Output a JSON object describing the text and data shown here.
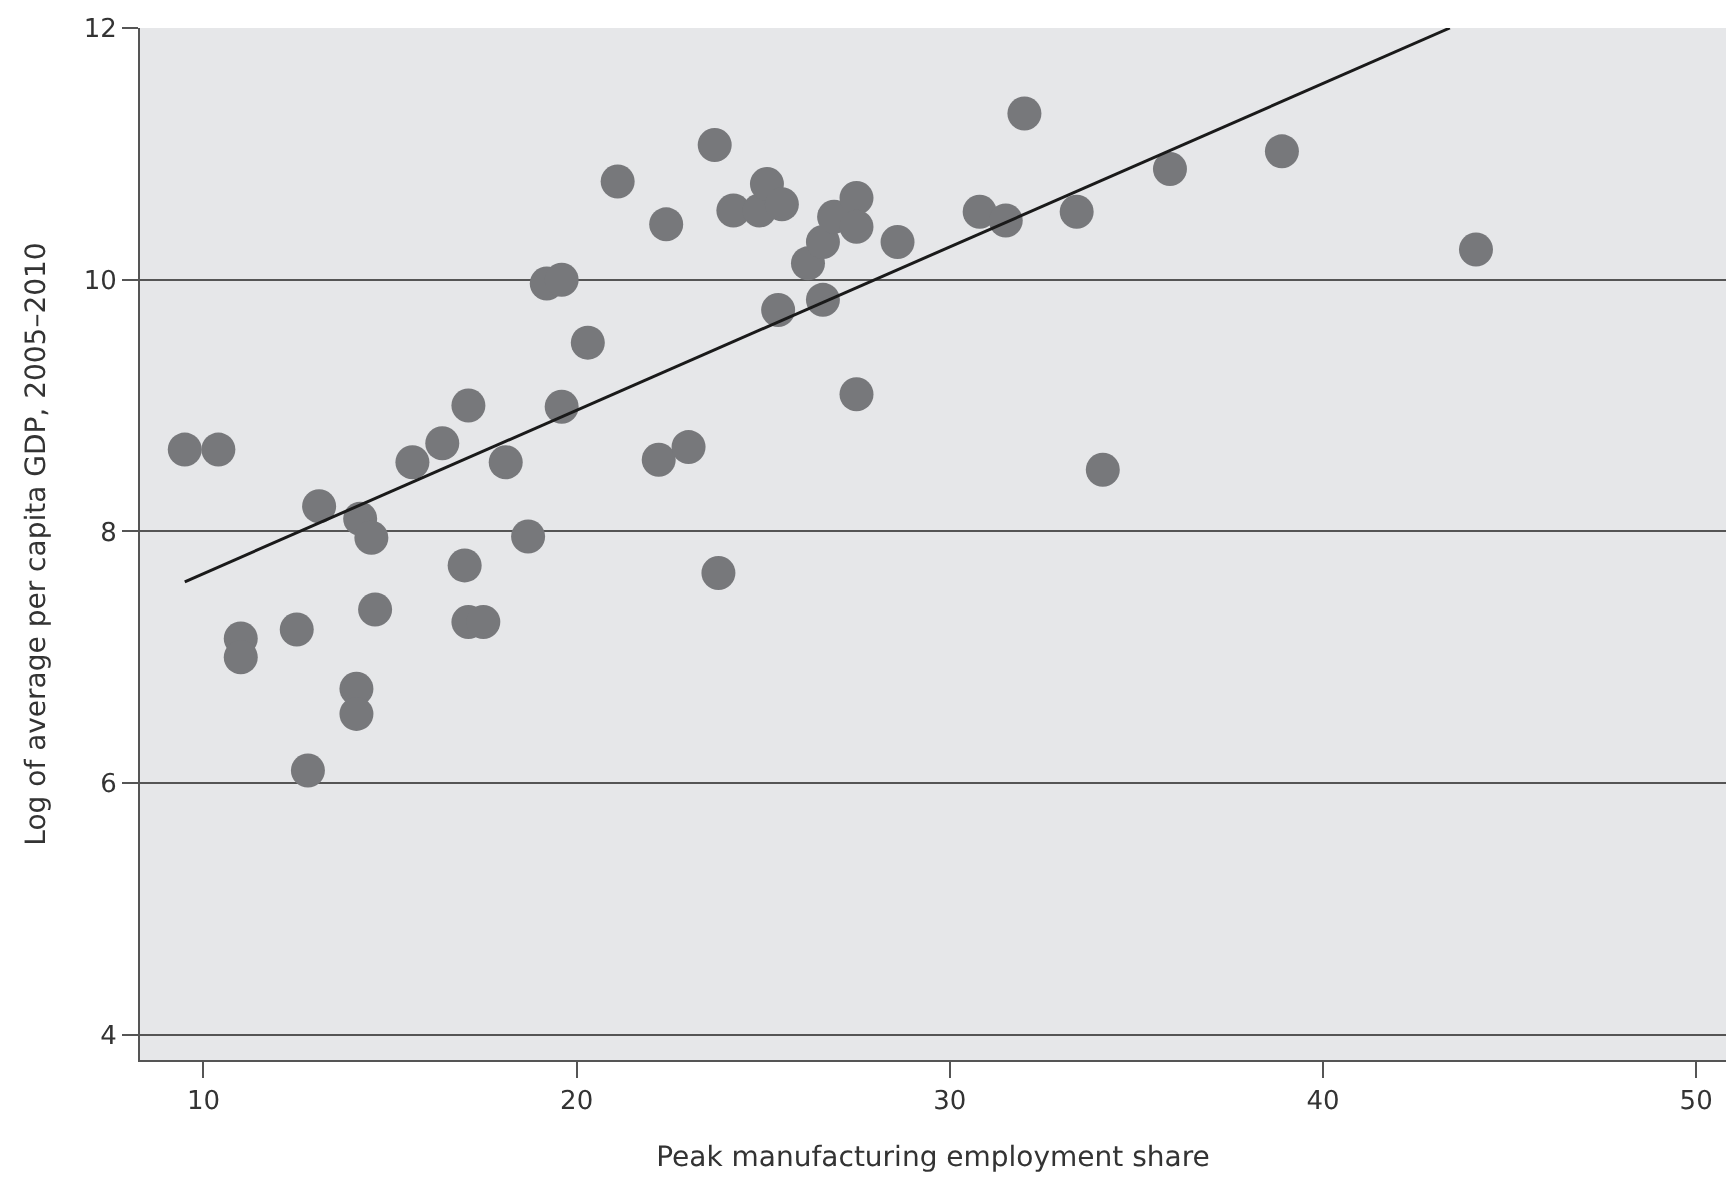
{
  "chart_data": {
    "type": "scatter",
    "xlabel": "Peak manufacturing employment share",
    "ylabel": "Log of average per capita GDP, 2005–2010",
    "xlim": [
      8.3,
      50.8
    ],
    "ylim": [
      3.8,
      12
    ],
    "xticks": [
      10,
      20,
      30,
      40,
      50
    ],
    "yticks": [
      4,
      6,
      8,
      10,
      12
    ],
    "grid": "y",
    "marker": "circle",
    "series": [
      {
        "color": "#77787b",
        "x": [
          9.5,
          10.4,
          11.0,
          11.0,
          12.5,
          12.8,
          13.1,
          14.1,
          14.1,
          14.2,
          14.5,
          14.6,
          15.6,
          16.4,
          17.0,
          17.1,
          17.1,
          17.5,
          18.1,
          18.7,
          19.2,
          19.6,
          19.6,
          20.3,
          21.1,
          22.4,
          23.7,
          22.2,
          23.0,
          23.8,
          24.2,
          24.9,
          25.1,
          25.5,
          26.2,
          26.6,
          26.9,
          27.5,
          27.5,
          28.6,
          25.4,
          26.6,
          27.5,
          32.0,
          30.8,
          31.5,
          33.4,
          34.1,
          38.9,
          35.9,
          44.1
        ],
        "values": [
          8.65,
          8.65,
          7.15,
          7.0,
          7.22,
          6.1,
          8.2,
          6.75,
          6.55,
          8.1,
          7.95,
          7.38,
          8.55,
          8.7,
          7.73,
          9.0,
          7.28,
          7.28,
          8.55,
          7.96,
          9.97,
          10.0,
          8.99,
          9.5,
          10.78,
          10.44,
          11.07,
          8.57,
          8.67,
          7.67,
          10.55,
          10.55,
          10.76,
          10.6,
          10.13,
          10.3,
          10.5,
          10.65,
          10.42,
          10.3,
          9.76,
          9.84,
          9.09,
          11.32,
          10.54,
          10.47,
          10.54,
          8.49,
          11.02,
          10.88,
          10.24
        ]
      },
      {
        "type": "line",
        "color": "#1a1a1a",
        "marker": "none",
        "x": [
          9.5,
          43.4
        ],
        "values": [
          7.6,
          12.0
        ]
      }
    ]
  }
}
